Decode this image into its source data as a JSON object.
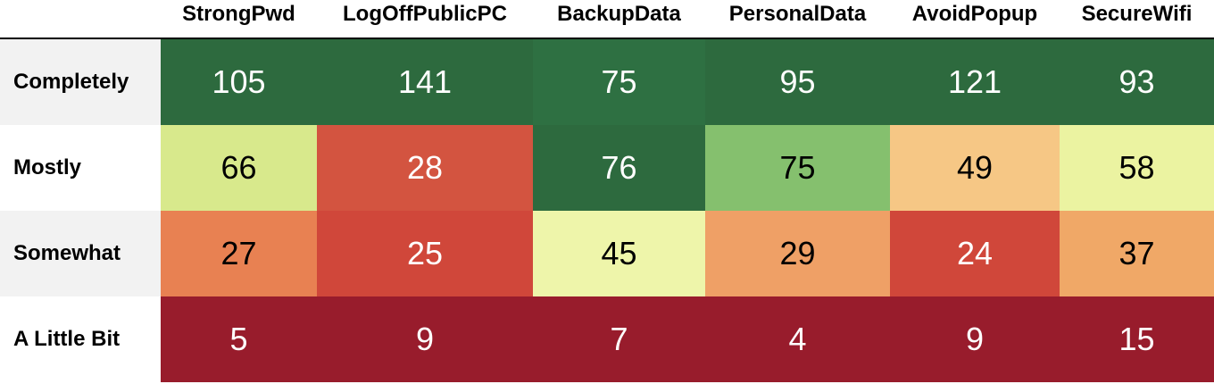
{
  "chart_data": {
    "type": "heatmap",
    "title": "",
    "xlabel": "",
    "ylabel": "",
    "columns": [
      "StrongPwd",
      "LogOffPublicPC",
      "BackupData",
      "PersonalData",
      "AvoidPopup",
      "SecureWifi"
    ],
    "rows": [
      "Completely",
      "Mostly",
      "Somewhat",
      "A Little Bit"
    ],
    "values": [
      [
        105,
        141,
        75,
        95,
        121,
        93
      ],
      [
        66,
        28,
        76,
        75,
        49,
        58
      ],
      [
        27,
        25,
        45,
        29,
        24,
        37
      ],
      [
        5,
        9,
        7,
        4,
        9,
        15
      ]
    ],
    "cell_colors": [
      [
        "#2d6a3e",
        "#2d6a3e",
        "#2e7042",
        "#2d6a3e",
        "#2d6a3e",
        "#2d6a3e"
      ],
      [
        "#d8e98c",
        "#d35440",
        "#2d6a3e",
        "#85c06e",
        "#f6c785",
        "#ebf3a1"
      ],
      [
        "#e88152",
        "#d0473a",
        "#eef5aa",
        "#efa066",
        "#d0473a",
        "#f0a867"
      ],
      [
        "#981c2c",
        "#981c2c",
        "#981c2c",
        "#981c2c",
        "#981c2c",
        "#981c2c"
      ]
    ],
    "text_colors": [
      [
        "#ffffff",
        "#ffffff",
        "#ffffff",
        "#ffffff",
        "#ffffff",
        "#ffffff"
      ],
      [
        "#000000",
        "#ffffff",
        "#ffffff",
        "#000000",
        "#000000",
        "#000000"
      ],
      [
        "#000000",
        "#ffffff",
        "#000000",
        "#000000",
        "#ffffff",
        "#000000"
      ],
      [
        "#ffffff",
        "#ffffff",
        "#ffffff",
        "#ffffff",
        "#ffffff",
        "#ffffff"
      ]
    ],
    "row_label_background": [
      "#f2f2f2",
      "#ffffff",
      "#f2f2f2",
      "#ffffff"
    ],
    "grid": false,
    "legend": "none"
  }
}
